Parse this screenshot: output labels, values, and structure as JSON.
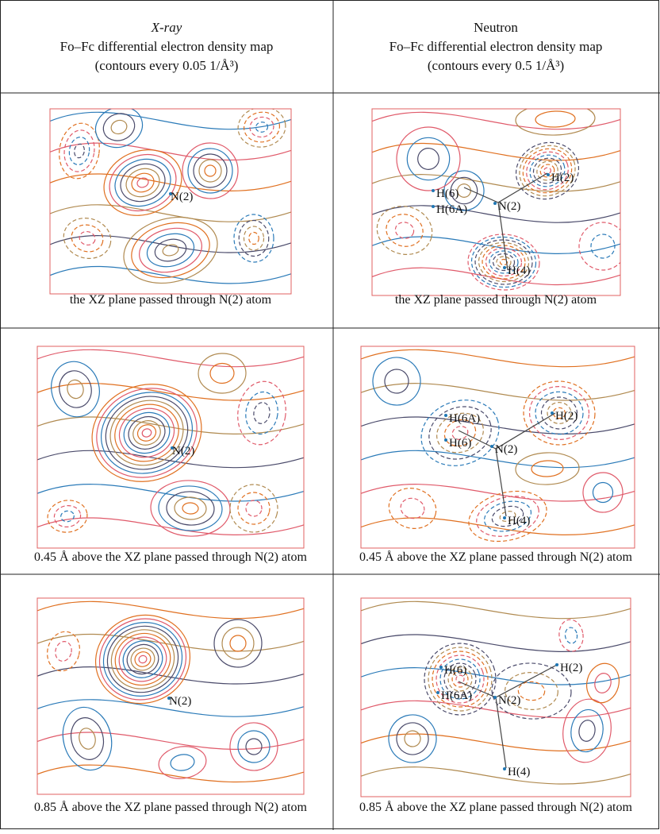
{
  "header": {
    "left": {
      "line1": "X-ray",
      "line2": "Fo–Fc differential electron density map",
      "line3": "(contours every 0.05 1/Å³)"
    },
    "right": {
      "line1": "Neutron",
      "line2": "Fo–Fc differential electron density map",
      "line3": "(contours every 0.5 1/Å³)"
    }
  },
  "rows": [
    {
      "left": {
        "caption": "the XZ plane passed through N(2)  atom",
        "labels": [
          "N(2)"
        ]
      },
      "right": {
        "caption": "the XZ plane passed through N(2)  atom",
        "labels": [
          "H(6)",
          "H(6A)",
          "N(2)",
          "H(2)",
          "H(4)"
        ]
      }
    },
    {
      "left": {
        "caption": "0.45 Å above the XZ plane passed through N(2) atom",
        "labels": [
          "N(2)"
        ]
      },
      "right": {
        "caption": "0.45 Å above the XZ plane passed through N(2) atom",
        "labels": [
          "H(6A)",
          "H(6)",
          "N(2)",
          "H(2)",
          "H(4)"
        ]
      }
    },
    {
      "left": {
        "caption": "0.85 Å above the XZ plane passed through N(2) atom",
        "labels": [
          "N(2)"
        ]
      },
      "right": {
        "caption": "0.85 Å above the XZ plane passed through N(2) atom",
        "labels": [
          "H(6)",
          "H(6A)",
          "N(2)",
          "H(2)",
          "H(4)"
        ]
      }
    }
  ]
}
